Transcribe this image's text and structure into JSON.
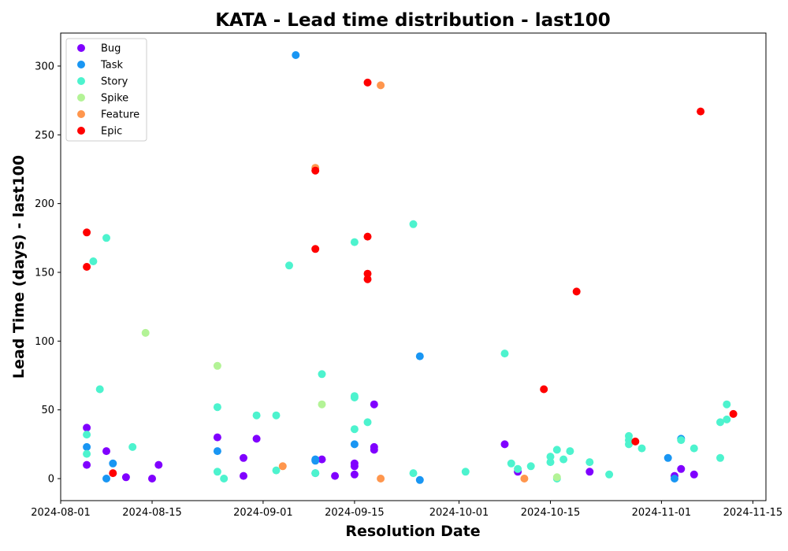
{
  "chart_data": {
    "type": "scatter",
    "title": "KATA - Lead time distribution - last100",
    "xlabel": "Resolution Date",
    "ylabel": "Lead Time (days) - last100",
    "xlim": [
      "2024-08-01",
      "2024-11-17"
    ],
    "ylim": [
      -16,
      324
    ],
    "x_ticks": [
      "2024-08-01",
      "2024-08-15",
      "2024-09-01",
      "2024-09-15",
      "2024-10-01",
      "2024-10-15",
      "2024-11-01",
      "2024-11-15"
    ],
    "y_ticks": [
      0,
      50,
      100,
      150,
      200,
      250,
      300
    ],
    "grid": false,
    "legend_position": "top-left",
    "series": [
      {
        "name": "Bug",
        "color": "#8000ff",
        "points": [
          [
            "2024-08-05",
            37
          ],
          [
            "2024-08-05",
            10
          ],
          [
            "2024-08-08",
            20
          ],
          [
            "2024-08-11",
            1
          ],
          [
            "2024-08-15",
            0
          ],
          [
            "2024-08-16",
            10
          ],
          [
            "2024-08-25",
            30
          ],
          [
            "2024-08-29",
            15
          ],
          [
            "2024-08-29",
            2
          ],
          [
            "2024-08-31",
            29
          ],
          [
            "2024-09-10",
            14
          ],
          [
            "2024-09-12",
            2
          ],
          [
            "2024-09-15",
            11
          ],
          [
            "2024-09-15",
            9
          ],
          [
            "2024-09-15",
            3
          ],
          [
            "2024-09-18",
            54
          ],
          [
            "2024-09-18",
            23
          ],
          [
            "2024-09-18",
            21
          ],
          [
            "2024-10-08",
            25
          ],
          [
            "2024-10-10",
            5
          ],
          [
            "2024-10-21",
            5
          ],
          [
            "2024-11-03",
            2
          ],
          [
            "2024-11-04",
            7
          ],
          [
            "2024-11-06",
            3
          ]
        ]
      },
      {
        "name": "Task",
        "color": "#1996f3",
        "points": [
          [
            "2024-08-05",
            23
          ],
          [
            "2024-08-08",
            0
          ],
          [
            "2024-08-09",
            11
          ],
          [
            "2024-08-25",
            20
          ],
          [
            "2024-09-06",
            308
          ],
          [
            "2024-09-09",
            14
          ],
          [
            "2024-09-09",
            13
          ],
          [
            "2024-09-09",
            4
          ],
          [
            "2024-09-15",
            25
          ],
          [
            "2024-09-25",
            89
          ],
          [
            "2024-09-25",
            -1
          ],
          [
            "2024-11-02",
            15
          ],
          [
            "2024-11-03",
            0
          ],
          [
            "2024-11-04",
            29
          ]
        ]
      },
      {
        "name": "Story",
        "color": "#4df3ce",
        "points": [
          [
            "2024-08-05",
            32
          ],
          [
            "2024-08-05",
            18
          ],
          [
            "2024-08-06",
            158
          ],
          [
            "2024-08-07",
            65
          ],
          [
            "2024-08-08",
            175
          ],
          [
            "2024-08-12",
            23
          ],
          [
            "2024-08-25",
            52
          ],
          [
            "2024-08-25",
            5
          ],
          [
            "2024-08-26",
            0
          ],
          [
            "2024-08-31",
            46
          ],
          [
            "2024-09-03",
            46
          ],
          [
            "2024-09-03",
            6
          ],
          [
            "2024-09-05",
            155
          ],
          [
            "2024-09-09",
            4
          ],
          [
            "2024-09-10",
            76
          ],
          [
            "2024-09-15",
            172
          ],
          [
            "2024-09-15",
            60
          ],
          [
            "2024-09-15",
            59
          ],
          [
            "2024-09-15",
            36
          ],
          [
            "2024-09-17",
            41
          ],
          [
            "2024-09-24",
            185
          ],
          [
            "2024-09-24",
            4
          ],
          [
            "2024-10-02",
            5
          ],
          [
            "2024-10-08",
            91
          ],
          [
            "2024-10-09",
            11
          ],
          [
            "2024-10-10",
            7
          ],
          [
            "2024-10-12",
            9
          ],
          [
            "2024-10-15",
            12
          ],
          [
            "2024-10-15",
            16
          ],
          [
            "2024-10-16",
            21
          ],
          [
            "2024-10-16",
            0
          ],
          [
            "2024-10-17",
            14
          ],
          [
            "2024-10-18",
            20
          ],
          [
            "2024-10-21",
            12
          ],
          [
            "2024-10-24",
            3
          ],
          [
            "2024-10-27",
            31
          ],
          [
            "2024-10-27",
            28
          ],
          [
            "2024-10-27",
            25
          ],
          [
            "2024-10-29",
            22
          ],
          [
            "2024-11-04",
            28
          ],
          [
            "2024-11-06",
            22
          ],
          [
            "2024-11-10",
            41
          ],
          [
            "2024-11-10",
            15
          ],
          [
            "2024-11-11",
            43
          ],
          [
            "2024-11-11",
            54
          ]
        ]
      },
      {
        "name": "Spike",
        "color": "#b3f396",
        "points": [
          [
            "2024-08-14",
            106
          ],
          [
            "2024-08-25",
            82
          ],
          [
            "2024-09-10",
            54
          ],
          [
            "2024-10-16",
            1
          ]
        ]
      },
      {
        "name": "Feature",
        "color": "#ff964d",
        "points": [
          [
            "2024-09-04",
            9
          ],
          [
            "2024-09-09",
            226
          ],
          [
            "2024-09-19",
            286
          ],
          [
            "2024-09-19",
            0
          ],
          [
            "2024-10-11",
            0
          ]
        ]
      },
      {
        "name": "Epic",
        "color": "#ff0000",
        "points": [
          [
            "2024-08-05",
            179
          ],
          [
            "2024-08-05",
            154
          ],
          [
            "2024-08-09",
            4
          ],
          [
            "2024-09-09",
            224
          ],
          [
            "2024-09-09",
            167
          ],
          [
            "2024-09-17",
            288
          ],
          [
            "2024-09-17",
            176
          ],
          [
            "2024-09-17",
            149
          ],
          [
            "2024-09-17",
            145
          ],
          [
            "2024-10-14",
            65
          ],
          [
            "2024-10-19",
            136
          ],
          [
            "2024-10-28",
            27
          ],
          [
            "2024-11-07",
            267
          ],
          [
            "2024-11-12",
            47
          ]
        ]
      }
    ]
  }
}
